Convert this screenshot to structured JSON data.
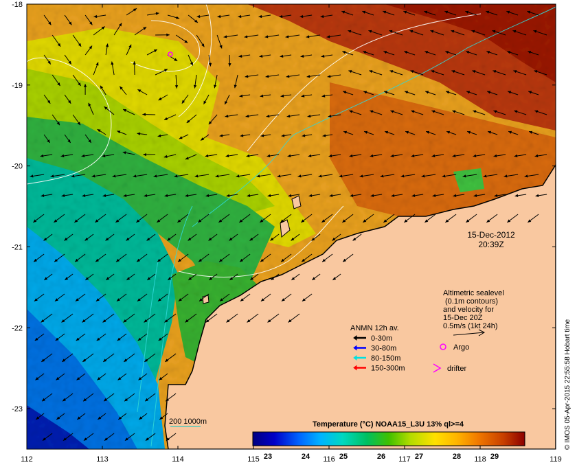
{
  "map": {
    "lon_ticks": [
      "112",
      "113",
      "114",
      "115",
      "116",
      "117",
      "118",
      "119"
    ],
    "lat_ticks": [
      "-18",
      "-19",
      "-20",
      "-21",
      "-22",
      "-23"
    ],
    "lon_range": [
      112,
      119
    ],
    "lat_range": [
      -23.5,
      -18
    ]
  },
  "date": {
    "line1": "15-Dec-2012",
    "line2": "20:39Z"
  },
  "sealevel_note": {
    "line1": "Altimetric sealevel",
    "line2": "(0.1m contours)",
    "line3": "and velocity for",
    "line4": "15-Dec 20Z",
    "line5": "0.5m/s (1kt 24h)"
  },
  "anmn_legend": {
    "title": "ANMN 12h av.",
    "items": [
      {
        "label": "0-30m",
        "color": "#000000"
      },
      {
        "label": "30-80m",
        "color": "#0000ff"
      },
      {
        "label": "80-150m",
        "color": "#00e0e0"
      },
      {
        "label": "150-300m",
        "color": "#ff0000"
      }
    ]
  },
  "markers": {
    "argo_label": "Argo",
    "argo_color": "#ff00ff",
    "drifter_label": "drifter",
    "drifter_color": "#ff00ff"
  },
  "isobath": {
    "label": "200  1000m",
    "color": "#00c8c8"
  },
  "colorbar": {
    "title": "Temperature (°C) NOAA15_L3U 13% ql>=4",
    "ticks": [
      "23",
      "24",
      "25",
      "26",
      "27",
      "28",
      "29"
    ],
    "range": [
      22.6,
      29.8
    ],
    "colors": [
      "#000080",
      "#0000c8",
      "#0064ff",
      "#00b4ff",
      "#00d8c0",
      "#00c060",
      "#40c000",
      "#b4dc00",
      "#ffe000",
      "#ffb400",
      "#f07800",
      "#c84000",
      "#8c0000"
    ]
  },
  "side_credit": "© IMOS 05-Apr-2015 22:55:58 Hobart time"
}
